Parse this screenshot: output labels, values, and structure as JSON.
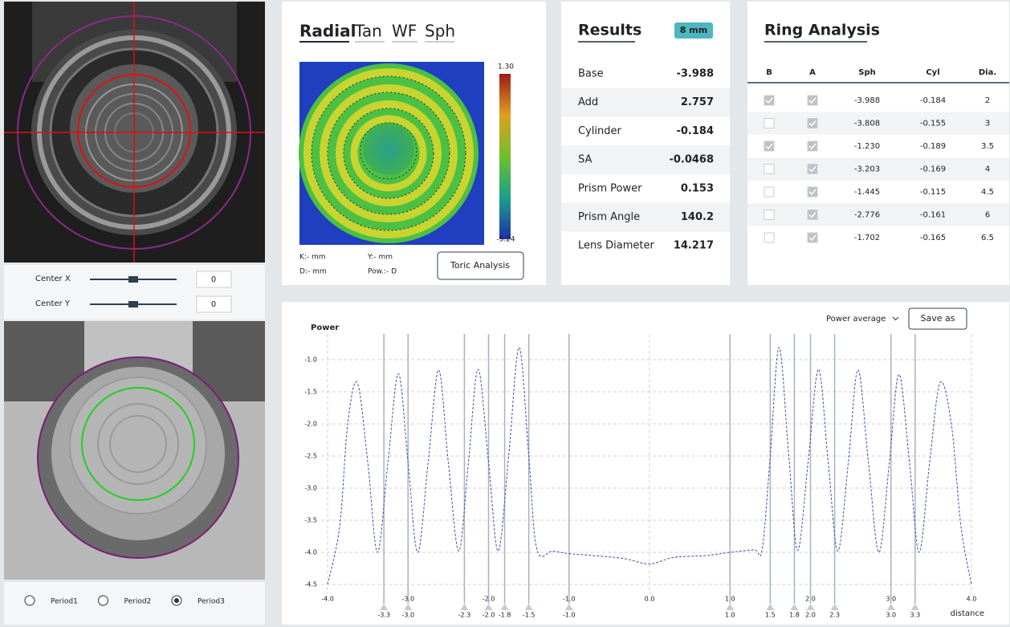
{
  "left_panel": {
    "sliders": [
      {
        "label": "Center X",
        "value": "0"
      },
      {
        "label": "Center Y",
        "value": "0"
      }
    ],
    "periods": [
      "Period1",
      "Period2",
      "Period3"
    ],
    "selected_period": 2
  },
  "radial_panel": {
    "tabs": [
      "Radial",
      "Tan",
      "WF",
      "Sph"
    ],
    "active_tab": 0,
    "colorbar": {
      "max": "1.30",
      "min": "-5.24"
    },
    "info": [
      "K:- mm",
      "Y:- mm",
      "D:- mm",
      "Pow.:- D"
    ],
    "button": "Toric Analysis"
  },
  "results": {
    "title": "Results",
    "badge": "8 mm",
    "rows": [
      [
        "Base",
        "-3.988"
      ],
      [
        "Add",
        "2.757"
      ],
      [
        "Cylinder",
        "-0.184"
      ],
      [
        "SA",
        "-0.0468"
      ],
      [
        "Prism Power",
        "0.153"
      ],
      [
        "Prism Angle",
        "140.2"
      ],
      [
        "Lens Diameter",
        "14.217"
      ]
    ]
  },
  "ring_analysis": {
    "title": "Ring Analysis",
    "columns": [
      "B",
      "A",
      "Sph",
      "Cyl",
      "Dia."
    ],
    "rows": [
      {
        "b": true,
        "a": true,
        "sph": "-3.988",
        "cyl": "-0.184",
        "dia": "2"
      },
      {
        "b": false,
        "a": true,
        "sph": "-3.808",
        "cyl": "-0.155",
        "dia": "3"
      },
      {
        "b": true,
        "a": true,
        "sph": "-1.230",
        "cyl": "-0.189",
        "dia": "3.5"
      },
      {
        "b": false,
        "a": true,
        "sph": "-3.203",
        "cyl": "-0.169",
        "dia": "4"
      },
      {
        "b": false,
        "a": true,
        "sph": "-1.445",
        "cyl": "-0.115",
        "dia": "4.5"
      },
      {
        "b": false,
        "a": true,
        "sph": "-2.776",
        "cyl": "-0.161",
        "dia": "6"
      },
      {
        "b": false,
        "a": true,
        "sph": "-1.702",
        "cyl": "-0.165",
        "dia": "6.5"
      }
    ]
  },
  "chart_data": {
    "type": "line",
    "y_label": "Power",
    "x_label": "distance",
    "dropdown": "Power average",
    "button": "Save as",
    "x": [
      -4.0,
      -3.85,
      -3.75,
      -3.63,
      -3.5,
      -3.38,
      -3.25,
      -3.12,
      -3.0,
      -2.88,
      -2.75,
      -2.62,
      -2.5,
      -2.37,
      -2.25,
      -2.13,
      -2.0,
      -1.88,
      -1.75,
      -1.62,
      -1.5,
      -1.4,
      -1.2,
      -1.0,
      -0.6,
      -0.3,
      0.0,
      0.3,
      0.7,
      1.0,
      1.3,
      1.4,
      1.5,
      1.61,
      1.73,
      1.84,
      1.97,
      2.1,
      2.22,
      2.34,
      2.47,
      2.59,
      2.72,
      2.85,
      2.98,
      3.1,
      3.23,
      3.35,
      3.48,
      3.61,
      3.75,
      3.87,
      4.0
    ],
    "series": [
      {
        "name": "Power",
        "color": "#3b4fa8",
        "values": [
          -4.5,
          -3.6,
          -2.0,
          -1.36,
          -2.6,
          -4.0,
          -2.6,
          -1.22,
          -2.6,
          -4.0,
          -2.6,
          -1.16,
          -2.6,
          -3.98,
          -2.6,
          -1.15,
          -2.6,
          -3.98,
          -2.5,
          -0.81,
          -2.5,
          -3.95,
          -3.98,
          -4.02,
          -4.06,
          -4.1,
          -4.18,
          -4.08,
          -4.05,
          -4.0,
          -3.96,
          -3.95,
          -2.5,
          -0.81,
          -2.5,
          -3.97,
          -2.6,
          -1.15,
          -2.6,
          -3.98,
          -2.6,
          -1.16,
          -2.6,
          -4.0,
          -2.6,
          -1.23,
          -2.6,
          -4.0,
          -2.6,
          -1.36,
          -2.0,
          -3.6,
          -4.5
        ]
      }
    ],
    "xlim": [
      -4.1,
      4.1
    ],
    "ylim": [
      -4.6,
      -0.6
    ],
    "xticks": [
      {
        "value": -4,
        "label": "-4.0"
      },
      {
        "value": -3,
        "label": "-3.0"
      },
      {
        "value": -2,
        "label": "-2.0"
      },
      {
        "value": -1,
        "label": "-1.0"
      },
      {
        "value": 0,
        "label": "0.0"
      },
      {
        "value": 1,
        "label": "1.0"
      },
      {
        "value": 2,
        "label": "2.0"
      },
      {
        "value": 3,
        "label": "3.0"
      },
      {
        "value": 4,
        "label": "4.0"
      }
    ],
    "yticks": [
      {
        "value": -1,
        "label": "-1.0"
      },
      -1.5,
      {
        "value": -2,
        "label": "-2.0"
      },
      -2.5,
      {
        "value": -3,
        "label": "-3.0"
      },
      -3.5,
      {
        "value": -4,
        "label": "-4.0"
      },
      -4.5
    ],
    "markers": [
      -3.3,
      {
        "value": -3,
        "label": "-3.0"
      },
      -2.3,
      {
        "value": -2,
        "label": "-2.0"
      },
      -1.8,
      -1.5,
      {
        "value": -1,
        "label": "-1.0"
      },
      {
        "value": 1,
        "label": "1.0"
      },
      1.5,
      1.8,
      {
        "value": 2,
        "label": "2.0"
      },
      2.3,
      {
        "value": 3,
        "label": "3.0"
      },
      3.3
    ],
    "grid": true
  }
}
